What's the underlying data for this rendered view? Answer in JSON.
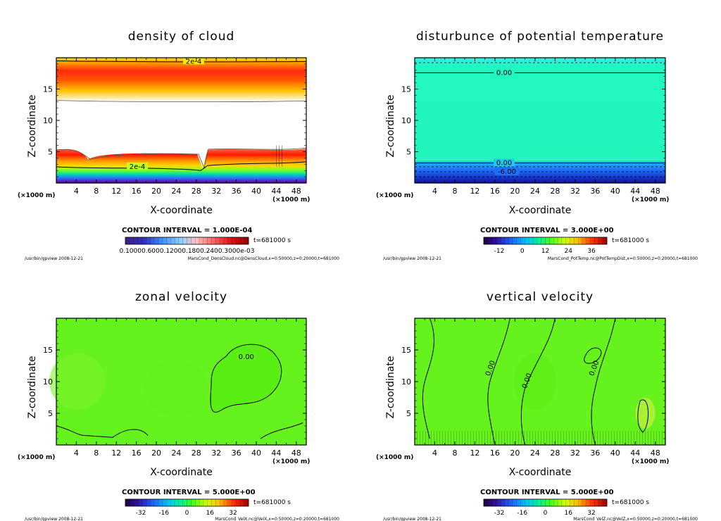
{
  "chart_data": [
    {
      "type": "contour",
      "title": "density of cloud",
      "xlabel": "X-coordinate",
      "ylabel": "Z-coordinate",
      "x_unit": "(×1000 m)",
      "z_unit": "(×1000 m)",
      "x_ticks": [
        "4",
        "8",
        "12",
        "16",
        "20",
        "24",
        "28",
        "32",
        "36",
        "40",
        "44",
        "48"
      ],
      "z_ticks": [
        "5",
        "10",
        "15"
      ],
      "xlim": [
        0,
        50
      ],
      "zlim": [
        0,
        20
      ],
      "contour_interval_label": "CONTOUR INTERVAL = 1.000E-04",
      "time_label": "t=681000 s",
      "colorbar_labels": [
        "0.10000E-03",
        "0.60000E-03",
        "0.12000E-03",
        "0.18000E-03",
        "0.24000E-03",
        "0.30000E-03"
      ],
      "colorbar_text": "0.10000.6000.12000.1800.2400.3000e-03",
      "contour_labels": [
        "2e-4",
        "2e-4"
      ],
      "footer_left": "/usr/bin/gpview   2008-12-21",
      "footer_right": "MarsCond_DensCloud.nc@DensCloud,x=0:50000,z=0:20000,t=681000"
    },
    {
      "type": "contour",
      "title": "disturbunce of potential temperature",
      "xlabel": "X-coordinate",
      "ylabel": "Z-coordinate",
      "x_unit": "(×1000 m)",
      "z_unit": "(×1000 m)",
      "x_ticks": [
        "4",
        "8",
        "12",
        "16",
        "20",
        "24",
        "28",
        "32",
        "36",
        "40",
        "44",
        "48"
      ],
      "z_ticks": [
        "5",
        "10",
        "15"
      ],
      "xlim": [
        0,
        50
      ],
      "zlim": [
        0,
        20
      ],
      "contour_interval_label": "CONTOUR INTERVAL = 3.000E+00",
      "time_label": "t=681000 s",
      "colorbar_labels": [
        "-12",
        "0",
        "12",
        "24",
        "36"
      ],
      "contour_labels": [
        "0.00",
        "0.00",
        "-6.00"
      ],
      "footer_left": "/usr/bin/gpview   2008-12-21",
      "footer_right": "MarsCond_PotTemp.nc@PotTempDist,x=0:50000,z=0:20000,t=681000"
    },
    {
      "type": "contour",
      "title": "zonal velocity",
      "xlabel": "X-coordinate",
      "ylabel": "Z-coordinate",
      "x_unit": "(×1000 m)",
      "z_unit": "(×1000 m)",
      "x_ticks": [
        "4",
        "8",
        "12",
        "16",
        "20",
        "24",
        "28",
        "32",
        "36",
        "40",
        "44",
        "48"
      ],
      "z_ticks": [
        "5",
        "10",
        "15"
      ],
      "xlim": [
        0,
        50
      ],
      "zlim": [
        0,
        20
      ],
      "contour_interval_label": "CONTOUR INTERVAL = 5.000E+00",
      "time_label": "t=681000 s",
      "colorbar_labels": [
        "-32",
        "-16",
        "0",
        "16",
        "32"
      ],
      "contour_labels": [
        "0.00"
      ],
      "footer_left": "/usr/bin/gpview   2008-12-21",
      "footer_right": "MarsCond_VelX.nc@VelX,x=0:50000,z=0:20000,t=681000"
    },
    {
      "type": "contour",
      "title": "vertical velocity",
      "xlabel": "X-coordinate",
      "ylabel": "Z-coordinate",
      "x_unit": "(×1000 m)",
      "z_unit": "(×1000 m)",
      "x_ticks": [
        "4",
        "8",
        "12",
        "16",
        "20",
        "24",
        "28",
        "32",
        "36",
        "40",
        "44",
        "48"
      ],
      "z_ticks": [
        "5",
        "10",
        "15"
      ],
      "xlim": [
        0,
        50
      ],
      "zlim": [
        0,
        20
      ],
      "contour_interval_label": "CONTOUR INTERVAL = 5.000E+00",
      "time_label": "t=681000 s",
      "colorbar_labels": [
        "-32",
        "-16",
        "0",
        "16",
        "32"
      ],
      "contour_labels": [
        "0.00",
        "0.00",
        "0.00"
      ],
      "footer_left": "/usr/bin/gpview   2008-12-21",
      "footer_right": "MarsCond_VelZ.nc@VelZ,x=0:50000,z=0:20000,t=681000"
    }
  ]
}
